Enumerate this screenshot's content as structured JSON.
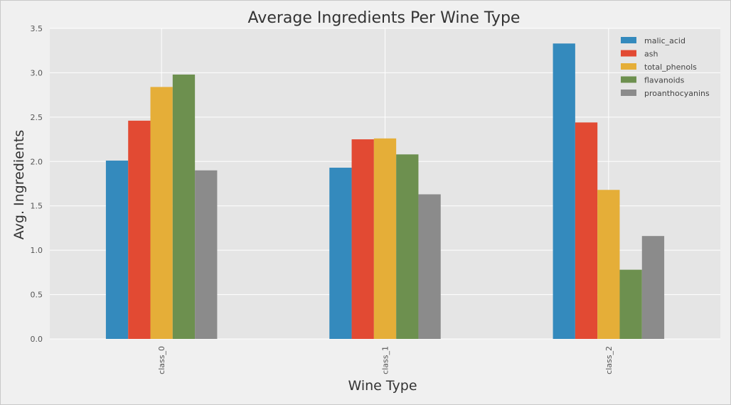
{
  "chart_data": {
    "type": "bar",
    "title": "Average Ingredients Per Wine Type",
    "xlabel": "Wine Type",
    "ylabel": "Avg. Ingredients",
    "ylim": [
      0,
      3.5
    ],
    "yticks": [
      "0.0",
      "0.5",
      "1.0",
      "1.5",
      "2.0",
      "2.5",
      "3.0",
      "3.5"
    ],
    "ytick_values": [
      0,
      0.5,
      1.0,
      1.5,
      2.0,
      2.5,
      3.0,
      3.5
    ],
    "categories": [
      "class_0",
      "class_1",
      "class_2"
    ],
    "grid": true,
    "legend_position": "top-right",
    "series": [
      {
        "name": "malic_acid",
        "color": "#348ABD",
        "values": [
          2.01,
          1.93,
          3.33
        ]
      },
      {
        "name": "ash",
        "color": "#E24A33",
        "values": [
          2.46,
          2.25,
          2.44
        ]
      },
      {
        "name": "total_phenols",
        "color": "#E5AE38",
        "values": [
          2.84,
          2.26,
          1.68
        ]
      },
      {
        "name": "flavanoids",
        "color": "#6D904F",
        "values": [
          2.98,
          2.08,
          0.78
        ]
      },
      {
        "name": "proanthocyanins",
        "color": "#8B8B8B",
        "values": [
          1.9,
          1.63,
          1.16
        ]
      }
    ]
  }
}
